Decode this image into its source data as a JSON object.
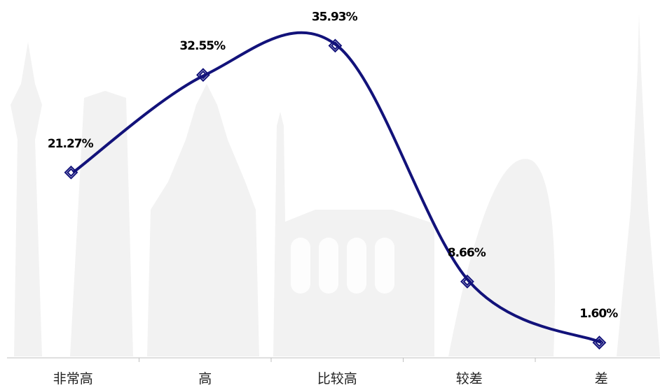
{
  "chart_data": {
    "type": "line",
    "categories": [
      "非常高",
      "高",
      "比较高",
      "较差",
      "差"
    ],
    "series": [
      {
        "color": "#12127a",
        "values": [
          21.27,
          32.55,
          35.93,
          8.66,
          1.6
        ],
        "value_labels": [
          "21.27%",
          "32.55%",
          "35.93%",
          "8.66%",
          "1.60%"
        ]
      }
    ],
    "ylim": [
      0,
      40
    ]
  }
}
